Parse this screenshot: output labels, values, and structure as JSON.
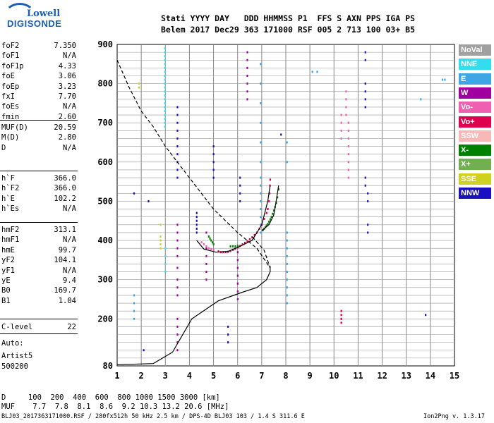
{
  "logo": {
    "line1": "Lowell",
    "line2": "DIGISONDE"
  },
  "header": {
    "row1": "Stati YYYY DAY   DDD HHMMSS P1  FFS S AXN PPS IGA PS",
    "row2": "Belem 2017 Dec29 363 171000 RSF 005 2 713 100 03+ B5"
  },
  "params_g1": [
    {
      "name": "foF2",
      "value": "7.350"
    },
    {
      "name": "foF1",
      "value": "N/A"
    },
    {
      "name": "foF1p",
      "value": "4.33"
    },
    {
      "name": "foE",
      "value": "3.06"
    },
    {
      "name": "foEp",
      "value": "3.23"
    },
    {
      "name": "fxI",
      "value": "7.70"
    },
    {
      "name": "foEs",
      "value": "N/A"
    },
    {
      "name": "fmin",
      "value": "2.60"
    }
  ],
  "params_g2": [
    {
      "name": "MUF(D)",
      "value": "20.59"
    },
    {
      "name": "M(D)",
      "value": "2.80"
    },
    {
      "name": "D",
      "value": "N/A"
    }
  ],
  "params_g3": [
    {
      "name": "h`F",
      "value": "366.0"
    },
    {
      "name": "h`F2",
      "value": "366.0"
    },
    {
      "name": "h`E",
      "value": "102.2"
    },
    {
      "name": "h`Es",
      "value": "N/A"
    }
  ],
  "params_g4": [
    {
      "name": "hmF2",
      "value": "313.1"
    },
    {
      "name": "hmF1",
      "value": "N/A"
    },
    {
      "name": "hmE",
      "value": "99.7"
    },
    {
      "name": "yF2",
      "value": "104.1"
    },
    {
      "name": "yF1",
      "value": "N/A"
    },
    {
      "name": "yE",
      "value": "9.4"
    },
    {
      "name": "B0",
      "value": "169.7"
    },
    {
      "name": "B1",
      "value": "1.04"
    }
  ],
  "params_g5": [
    {
      "name": "C-level",
      "value": "22"
    }
  ],
  "auto": {
    "label": "Auto:",
    "artist": "Artist5",
    "code": "500200"
  },
  "legend": [
    {
      "label": "NoVal",
      "color": "#a0a0a0"
    },
    {
      "label": "NNE",
      "color": "#33ddee"
    },
    {
      "label": "E",
      "color": "#3fa6e6"
    },
    {
      "label": "W",
      "color": "#a000a0"
    },
    {
      "label": "Vo-",
      "color": "#f060b0"
    },
    {
      "label": "Vo+",
      "color": "#e00050"
    },
    {
      "label": "SSW",
      "color": "#f8b8b8"
    },
    {
      "label": "X-",
      "color": "#008000"
    },
    {
      "label": "X+",
      "color": "#70b050"
    },
    {
      "label": "SSE",
      "color": "#d0d020"
    },
    {
      "label": "NNW",
      "color": "#1a10c0"
    }
  ],
  "muf_table": {
    "row_d": "D     100  200  400  600  800 1000 1500 3000 [km]",
    "row_muf": "MUF    7.7  7.8  8.1  8.6  9.2 10.3 13.2 20.6 [MHz]"
  },
  "footer": {
    "left": "BLJ03_2017363171000.RSF / 280fx512h 50 kHz 2.5 km / DPS-4D BLJ03 103 / 1.4 S 311.6 E",
    "right": "Ion2Png v. 1.3.17"
  },
  "chart_data": {
    "type": "scatter",
    "xlim": [
      1,
      15
    ],
    "ylim": [
      80,
      900
    ],
    "x_ticks": [
      "1",
      "2",
      "3",
      "4",
      "5",
      "6",
      "7",
      "8",
      "9",
      "10",
      "11",
      "12",
      "13",
      "14",
      "15"
    ],
    "y_ticks": [
      "80",
      "200",
      "300",
      "400",
      "500",
      "600",
      "700",
      "800",
      "900"
    ],
    "curves": [
      {
        "name": "profile",
        "style": "solid",
        "x": [
          1.0,
          2.5,
          3.3,
          4.1,
          5.2,
          6.2,
          6.8,
          7.2,
          7.35,
          7.35
        ],
        "y": [
          83,
          86,
          115,
          200,
          246,
          268,
          280,
          300,
          320,
          335
        ]
      },
      {
        "name": "o-trace",
        "style": "solid",
        "x": [
          4.3,
          4.6,
          5.1,
          5.6,
          6.0,
          6.6,
          7.0,
          7.25,
          7.35
        ],
        "y": [
          400,
          378,
          370,
          372,
          382,
          400,
          440,
          500,
          540
        ]
      },
      {
        "name": "x-trace",
        "style": "solid",
        "x": [
          7.0,
          7.3,
          7.5,
          7.6,
          7.7
        ],
        "y": [
          425,
          440,
          465,
          500,
          540
        ]
      },
      {
        "name": "model",
        "style": "dashed",
        "x": [
          1.0,
          1.5,
          2.0,
          2.5,
          3.0,
          4.0,
          5.0,
          6.0,
          6.8,
          7.35,
          7.1,
          6.6
        ],
        "y": [
          860,
          790,
          730,
          690,
          640,
          560,
          480,
          420,
          380,
          330,
          375,
          410
        ]
      }
    ],
    "echoes": [
      {
        "dir": "NNE",
        "x": [
          2.98,
          2.98,
          2.98,
          2.98,
          2.98,
          2.98,
          2.98,
          2.98,
          2.98,
          2.98,
          2.98,
          2.98,
          2.98,
          2.98,
          2.98,
          2.98,
          2.98,
          2.98,
          2.98,
          2.98,
          2.98,
          3.0,
          3.0,
          3.0,
          3.0
        ],
        "y": [
          700,
          710,
          720,
          730,
          740,
          750,
          760,
          770,
          780,
          790,
          800,
          810,
          820,
          830,
          840,
          850,
          860,
          870,
          880,
          890,
          690,
          380,
          360,
          340,
          320
        ]
      },
      {
        "dir": "E",
        "x": [
          6.95,
          6.95,
          6.95,
          6.95,
          6.95,
          6.95,
          6.95,
          6.95,
          6.95,
          6.95,
          6.95,
          6.95,
          6.95,
          6.95,
          8.05,
          8.05,
          8.05,
          8.05,
          8.05,
          8.05,
          8.05,
          8.05,
          8.05,
          8.05,
          8.05,
          8.05,
          1.7,
          1.7,
          1.7,
          1.7,
          9.1,
          9.3,
          13.6,
          14.5,
          14.6
        ],
        "y": [
          420,
          440,
          460,
          480,
          500,
          520,
          540,
          560,
          600,
          650,
          700,
          750,
          800,
          850,
          240,
          260,
          280,
          300,
          320,
          340,
          360,
          380,
          400,
          420,
          600,
          650,
          200,
          220,
          240,
          260,
          830,
          830,
          760,
          810,
          810
        ]
      },
      {
        "dir": "W",
        "x": [
          3.5,
          3.5,
          3.5,
          3.5,
          3.5,
          3.5,
          3.5,
          3.5,
          3.5,
          3.5,
          3.5,
          3.5,
          3.5,
          3.5,
          6.4,
          6.4,
          6.4,
          6.4,
          6.4,
          6.4,
          6.4,
          6.0,
          6.0,
          6.0,
          6.0,
          6.0,
          6.0,
          6.0,
          4.7,
          4.7,
          4.7,
          4.7,
          4.7,
          4.7
        ],
        "y": [
          120,
          140,
          160,
          180,
          200,
          260,
          280,
          300,
          330,
          360,
          380,
          400,
          420,
          440,
          800,
          820,
          840,
          860,
          880,
          760,
          780,
          250,
          270,
          290,
          310,
          330,
          350,
          370,
          300,
          320,
          340,
          360,
          380,
          420
        ]
      },
      {
        "dir": "Vo-",
        "x": [
          10.6,
          10.6,
          10.6,
          10.6,
          10.6,
          10.6,
          10.6,
          10.6,
          10.5,
          10.5,
          10.5,
          10.5,
          10.3,
          10.3,
          10.3,
          10.3,
          10.3,
          10.3,
          4.5,
          4.6,
          4.7,
          4.8,
          4.9,
          5.0
        ],
        "y": [
          560,
          580,
          600,
          620,
          640,
          660,
          680,
          700,
          720,
          740,
          760,
          780,
          660,
          680,
          700,
          720,
          200,
          220,
          395,
          390,
          385,
          380,
          378,
          376
        ]
      },
      {
        "dir": "Vo+",
        "x": [
          5.2,
          5.3,
          5.4,
          5.5,
          5.6,
          5.7,
          5.8,
          5.9,
          6.0,
          6.1,
          6.2,
          6.3,
          6.4,
          6.5,
          6.6,
          6.7,
          6.8,
          6.9,
          7.0,
          7.1,
          7.2,
          7.25,
          7.3,
          7.32,
          7.34,
          7.35,
          10.3,
          10.3,
          10.3,
          10.3
        ],
        "y": [
          372,
          370,
          370,
          370,
          371,
          373,
          376,
          379,
          382,
          386,
          390,
          394,
          398,
          403,
          408,
          414,
          420,
          430,
          440,
          455,
          470,
          480,
          500,
          520,
          540,
          555,
          190,
          200,
          210,
          220
        ]
      },
      {
        "dir": "X-",
        "x": [
          7.05,
          7.1,
          7.15,
          7.2,
          7.25,
          7.3,
          7.35,
          7.4,
          7.45,
          7.5,
          7.55,
          7.6,
          7.65,
          7.7,
          4.8,
          4.85,
          4.9,
          4.95,
          5.0,
          5.7,
          5.8,
          5.9,
          6.0
        ],
        "y": [
          426,
          430,
          434,
          438,
          442,
          448,
          454,
          460,
          468,
          476,
          485,
          495,
          510,
          530,
          410,
          405,
          400,
          395,
          390,
          385,
          385,
          385,
          386
        ]
      },
      {
        "dir": "SSE",
        "x": [
          2.8,
          2.8,
          2.8,
          2.8,
          2.8,
          1.9,
          1.9
        ],
        "y": [
          380,
          390,
          400,
          410,
          440,
          790,
          800
        ]
      },
      {
        "dir": "NNW",
        "x": [
          3.5,
          3.5,
          3.5,
          3.5,
          3.5,
          3.5,
          3.5,
          3.5,
          3.5,
          3.5,
          4.3,
          4.3,
          4.3,
          4.3,
          4.3,
          4.3,
          5.0,
          5.0,
          5.0,
          5.0,
          5.0,
          6.1,
          6.1,
          6.1,
          6.1,
          11.3,
          11.3,
          11.3,
          11.3,
          11.3,
          11.3,
          11.3,
          11.3,
          11.4,
          11.4,
          11.4,
          11.4,
          5.6,
          5.6,
          5.6,
          2.1,
          1.7,
          2.3,
          7.8,
          13.8
        ],
        "y": [
          560,
          580,
          600,
          620,
          640,
          660,
          680,
          700,
          720,
          740,
          420,
          430,
          440,
          450,
          460,
          470,
          560,
          580,
          600,
          620,
          640,
          500,
          520,
          540,
          560,
          860,
          880,
          800,
          780,
          760,
          740,
          560,
          540,
          520,
          500,
          440,
          420,
          140,
          160,
          180,
          120,
          520,
          500,
          670,
          210
        ]
      }
    ]
  }
}
